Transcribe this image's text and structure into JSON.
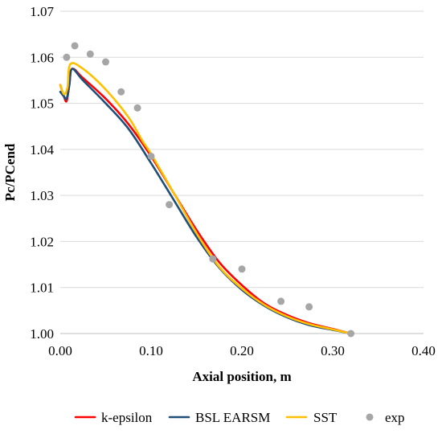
{
  "chart_data": {
    "type": "line",
    "title": "",
    "xlabel": "Axial position, m",
    "ylabel": "Pc/PCend",
    "xlim": [
      0.0,
      0.4
    ],
    "ylim": [
      1.0,
      1.07
    ],
    "x_ticks": [
      0.0,
      0.1,
      0.2,
      0.3,
      0.4
    ],
    "x_tick_labels": [
      "0.00",
      "0.10",
      "0.20",
      "0.30",
      "0.40"
    ],
    "y_ticks": [
      1.0,
      1.01,
      1.02,
      1.03,
      1.04,
      1.05,
      1.06,
      1.07
    ],
    "y_tick_labels": [
      "1.00",
      "1.01",
      "1.02",
      "1.03",
      "1.04",
      "1.05",
      "1.06",
      "1.07"
    ],
    "grid": "horizontal",
    "legend_position": "bottom",
    "series": [
      {
        "name": "k-epsilon",
        "kind": "line",
        "color": "#ff0000",
        "points": [
          [
            0.0,
            1.054
          ],
          [
            0.004,
            1.0515
          ],
          [
            0.007,
            1.0505
          ],
          [
            0.01,
            1.054
          ],
          [
            0.013,
            1.0575
          ],
          [
            0.025,
            1.0555
          ],
          [
            0.05,
            1.051
          ],
          [
            0.075,
            1.0455
          ],
          [
            0.1,
            1.0385
          ],
          [
            0.125,
            1.0305
          ],
          [
            0.15,
            1.0225
          ],
          [
            0.175,
            1.0155
          ],
          [
            0.2,
            1.0105
          ],
          [
            0.225,
            1.0065
          ],
          [
            0.25,
            1.004
          ],
          [
            0.275,
            1.0022
          ],
          [
            0.3,
            1.001
          ],
          [
            0.32,
            1.0
          ]
        ]
      },
      {
        "name": "BSL EARSM",
        "kind": "line",
        "color": "#1f4e79",
        "points": [
          [
            0.0,
            1.0525
          ],
          [
            0.004,
            1.0515
          ],
          [
            0.007,
            1.051
          ],
          [
            0.01,
            1.054
          ],
          [
            0.013,
            1.0575
          ],
          [
            0.025,
            1.055
          ],
          [
            0.05,
            1.05
          ],
          [
            0.075,
            1.0445
          ],
          [
            0.1,
            1.037
          ],
          [
            0.125,
            1.029
          ],
          [
            0.15,
            1.021
          ],
          [
            0.175,
            1.0143
          ],
          [
            0.2,
            1.0095
          ],
          [
            0.225,
            1.006
          ],
          [
            0.25,
            1.0035
          ],
          [
            0.275,
            1.0018
          ],
          [
            0.3,
            1.0008
          ],
          [
            0.32,
            1.0
          ]
        ]
      },
      {
        "name": "SST",
        "kind": "line",
        "color": "#ffc000",
        "points": [
          [
            0.0,
            1.054
          ],
          [
            0.004,
            1.052
          ],
          [
            0.008,
            1.0535
          ],
          [
            0.011,
            1.0585
          ],
          [
            0.025,
            1.0575
          ],
          [
            0.05,
            1.053
          ],
          [
            0.075,
            1.047
          ],
          [
            0.09,
            1.042
          ],
          [
            0.1,
            1.039
          ],
          [
            0.125,
            1.0305
          ],
          [
            0.15,
            1.0218
          ],
          [
            0.175,
            1.0145
          ],
          [
            0.2,
            1.0098
          ],
          [
            0.225,
            1.0062
          ],
          [
            0.25,
            1.0037
          ],
          [
            0.275,
            1.002
          ],
          [
            0.3,
            1.0009
          ],
          [
            0.32,
            1.0
          ]
        ]
      },
      {
        "name": "exp",
        "kind": "scatter",
        "color": "#a6a6a6",
        "points": [
          [
            0.007,
            1.06
          ],
          [
            0.016,
            1.0625
          ],
          [
            0.033,
            1.0607
          ],
          [
            0.05,
            1.059
          ],
          [
            0.067,
            1.0525
          ],
          [
            0.085,
            1.049
          ],
          [
            0.1,
            1.0385
          ],
          [
            0.12,
            1.028
          ],
          [
            0.168,
            1.0162
          ],
          [
            0.2,
            1.014
          ],
          [
            0.243,
            1.007
          ],
          [
            0.274,
            1.0058
          ],
          [
            0.32,
            1.0
          ]
        ]
      }
    ]
  }
}
